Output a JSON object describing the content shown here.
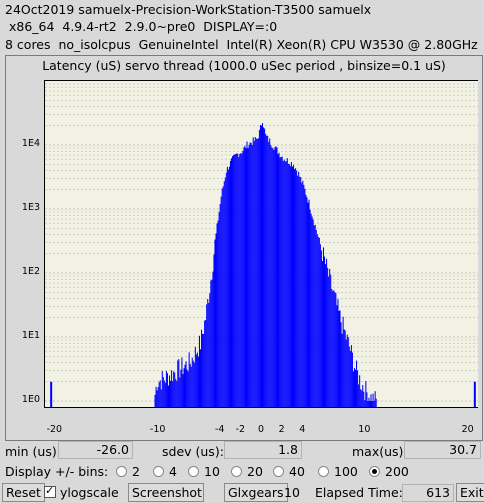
{
  "header": {
    "line1": "24Oct2019 samuelx-Precision-WorkStation-T3500 samuelx",
    "line2": " x86_64  4.9.4-rt2  2.9.0~pre0  DISPLAY=:0",
    "line3": "8 cores  no_isolcpus  GenuineIntel  Intel(R) Xeon(R) CPU W3530 @ 2.80GHz"
  },
  "chart_data": {
    "type": "bar",
    "title": "Latency (uS) servo thread (1000.0 uSec period , binsize=0.1 uS)",
    "xlim": [
      -21,
      21
    ],
    "y_scale": "log",
    "ylim_exp": [
      0,
      5
    ],
    "ytick_labels": [
      "1E0",
      "1E1",
      "1E2",
      "1E3",
      "1E4"
    ],
    "xtick_labels": [
      "-20",
      "-10",
      "-4",
      "-2",
      "0",
      "2",
      "4",
      "10",
      "20"
    ],
    "xticks": [
      -20,
      -10,
      -4,
      -2,
      0,
      2,
      4,
      10,
      20
    ],
    "bar_color": "#0000ff",
    "envelope_x": [
      -10.5,
      -10.2,
      -9.5,
      -8,
      -7,
      -6,
      -5.5,
      -5,
      -4.5,
      -4,
      -3.5,
      -3,
      -2.5,
      -2,
      -1.5,
      -1,
      -0.5,
      -0.3,
      0,
      0.3,
      0.5,
      1,
      1.5,
      2,
      2.5,
      3,
      3.5,
      4,
      4.5,
      5,
      5.5,
      6,
      6.5,
      7,
      7.5,
      8,
      8.5,
      9,
      9.5,
      10,
      10.5,
      11
    ],
    "envelope_log": [
      0,
      0.3,
      0.35,
      0.5,
      0.6,
      0.9,
      1.3,
      1.9,
      2.6,
      3.2,
      3.6,
      3.75,
      3.85,
      3.9,
      4.0,
      4.05,
      4.1,
      4.2,
      4.4,
      4.15,
      4.1,
      4.0,
      3.9,
      3.8,
      3.75,
      3.7,
      3.55,
      3.35,
      3.1,
      2.8,
      2.5,
      2.2,
      1.9,
      1.6,
      1.3,
      1.05,
      0.8,
      0.5,
      0.3,
      0.15,
      0.05,
      0
    ],
    "outliers": [
      {
        "x": -20.5,
        "log": 0.3
      },
      {
        "x": 20.5,
        "log": 0.3
      }
    ]
  },
  "stats": {
    "min_label": "min (us)",
    "min_value": "-26.0",
    "sdev_label": "sdev (us):",
    "sdev_value": "1.8",
    "max_label": "max(us)",
    "max_value": "30.7"
  },
  "display": {
    "label": "Display +/- bins:",
    "options": [
      "2",
      "4",
      "10",
      "20",
      "40",
      "100",
      "200"
    ],
    "selected": "200"
  },
  "controls": {
    "reset": "Reset",
    "ylogscale": "ylogscale",
    "screenshot": "Screenshot",
    "glxgears": "Glxgears",
    "glxgears_value": "10",
    "elapsed_label": "Elapsed Time:",
    "elapsed_value": "613",
    "exit": "Exit"
  }
}
